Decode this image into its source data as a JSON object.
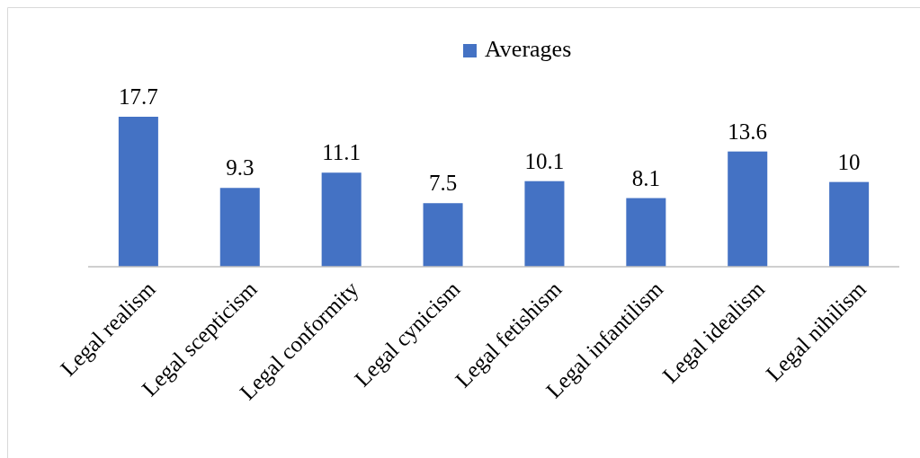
{
  "chart_data": {
    "type": "bar",
    "categories": [
      "Legal realism",
      "Legal scepticism",
      "Legal conformity",
      "Legal cynicism",
      "Legal fetishism",
      "Legal infantilism",
      "Legal idealism",
      "Legal nihilism"
    ],
    "series": [
      {
        "name": "Averages",
        "color": "#4472c4",
        "values": [
          17.7,
          9.3,
          11.1,
          7.5,
          10.1,
          8.1,
          13.6,
          10
        ]
      }
    ],
    "data_labels": true,
    "legend": "top",
    "grid": false
  }
}
